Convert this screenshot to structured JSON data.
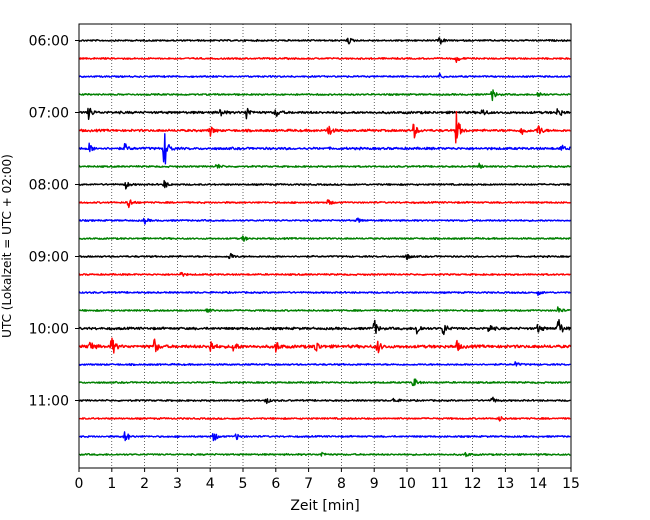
{
  "chart_data": {
    "type": "line",
    "title": "",
    "xlabel": "Zeit  [min]",
    "ylabel": "UTC (Lokalzeit = UTC + 02:00)",
    "xlim": [
      0,
      15
    ],
    "x_ticks": [
      "0",
      "1",
      "2",
      "3",
      "4",
      "5",
      "6",
      "7",
      "8",
      "9",
      "10",
      "11",
      "12",
      "13",
      "14",
      "15"
    ],
    "y_ticks": [
      "06:00",
      "07:00",
      "08:00",
      "09:00",
      "10:00",
      "11:00"
    ],
    "grid": "vertical dotted at each minute",
    "trace_interval_minutes": 15,
    "colors": [
      "#000000",
      "#ff0000",
      "#0000ff",
      "#008000"
    ],
    "traces": [
      {
        "start": "06:00",
        "color": "#000000",
        "amplitude": "low",
        "events": [
          {
            "x": 8.2,
            "a": 0.45
          },
          {
            "x": 11.0,
            "a": 0.5
          }
        ]
      },
      {
        "start": "06:15",
        "color": "#ff0000",
        "amplitude": "low",
        "events": [
          {
            "x": 11.5,
            "a": 0.45
          }
        ]
      },
      {
        "start": "06:30",
        "color": "#0000ff",
        "amplitude": "low",
        "events": [
          {
            "x": 11.0,
            "a": 0.35
          }
        ]
      },
      {
        "start": "06:45",
        "color": "#008000",
        "amplitude": "low",
        "events": [
          {
            "x": 12.6,
            "a": 0.7
          },
          {
            "x": 14.0,
            "a": 0.4
          }
        ]
      },
      {
        "start": "07:00",
        "color": "#000000",
        "amplitude": "medium",
        "events": [
          {
            "x": 0.3,
            "a": 0.8
          },
          {
            "x": 4.3,
            "a": 0.6
          },
          {
            "x": 5.1,
            "a": 0.9
          },
          {
            "x": 6.0,
            "a": 0.6
          },
          {
            "x": 12.3,
            "a": 0.5
          },
          {
            "x": 14.6,
            "a": 0.7
          }
        ]
      },
      {
        "start": "07:15",
        "color": "#ff0000",
        "amplitude": "medium",
        "events": [
          {
            "x": 4.0,
            "a": 0.6
          },
          {
            "x": 7.6,
            "a": 0.8
          },
          {
            "x": 10.2,
            "a": 1.0
          },
          {
            "x": 11.5,
            "a": 2.2
          },
          {
            "x": 13.5,
            "a": 0.7
          },
          {
            "x": 14.0,
            "a": 0.8
          }
        ]
      },
      {
        "start": "07:30",
        "color": "#0000ff",
        "amplitude": "medium",
        "events": [
          {
            "x": 0.3,
            "a": 0.6
          },
          {
            "x": 1.4,
            "a": 0.5
          },
          {
            "x": 2.6,
            "a": 2.5
          },
          {
            "x": 14.7,
            "a": 0.4
          }
        ]
      },
      {
        "start": "07:45",
        "color": "#008000",
        "amplitude": "low",
        "events": [
          {
            "x": 4.2,
            "a": 0.35
          },
          {
            "x": 12.2,
            "a": 0.3
          }
        ]
      },
      {
        "start": "08:00",
        "color": "#000000",
        "amplitude": "low",
        "events": [
          {
            "x": 1.4,
            "a": 0.6
          },
          {
            "x": 2.6,
            "a": 0.5
          }
        ]
      },
      {
        "start": "08:15",
        "color": "#ff0000",
        "amplitude": "low",
        "events": [
          {
            "x": 1.5,
            "a": 0.8
          },
          {
            "x": 7.6,
            "a": 0.4
          }
        ]
      },
      {
        "start": "08:30",
        "color": "#0000ff",
        "amplitude": "low",
        "events": [
          {
            "x": 2.0,
            "a": 0.35
          },
          {
            "x": 8.5,
            "a": 0.3
          }
        ]
      },
      {
        "start": "08:45",
        "color": "#008000",
        "amplitude": "low",
        "events": [
          {
            "x": 5.0,
            "a": 0.35
          }
        ]
      },
      {
        "start": "09:00",
        "color": "#000000",
        "amplitude": "low",
        "events": [
          {
            "x": 4.6,
            "a": 0.5
          },
          {
            "x": 10.0,
            "a": 0.35
          }
        ]
      },
      {
        "start": "09:15",
        "color": "#ff0000",
        "amplitude": "low",
        "events": [
          {
            "x": 3.1,
            "a": 0.3
          }
        ]
      },
      {
        "start": "09:30",
        "color": "#0000ff",
        "amplitude": "low",
        "events": [
          {
            "x": 14.0,
            "a": 0.3
          }
        ]
      },
      {
        "start": "09:45",
        "color": "#008000",
        "amplitude": "low",
        "events": [
          {
            "x": 3.9,
            "a": 0.35
          },
          {
            "x": 14.6,
            "a": 0.5
          }
        ]
      },
      {
        "start": "10:00",
        "color": "#000000",
        "amplitude": "medium",
        "events": [
          {
            "x": 9.0,
            "a": 1.0
          },
          {
            "x": 10.3,
            "a": 0.8
          },
          {
            "x": 11.1,
            "a": 0.9
          },
          {
            "x": 12.5,
            "a": 0.6
          },
          {
            "x": 14.0,
            "a": 0.6
          },
          {
            "x": 14.6,
            "a": 1.6
          }
        ]
      },
      {
        "start": "10:15",
        "color": "#ff0000",
        "amplitude": "high",
        "events": [
          {
            "x": 0.3,
            "a": 1.0
          },
          {
            "x": 1.0,
            "a": 1.2
          },
          {
            "x": 2.3,
            "a": 0.9
          },
          {
            "x": 4.0,
            "a": 0.8
          },
          {
            "x": 4.7,
            "a": 0.8
          },
          {
            "x": 6.0,
            "a": 0.7
          },
          {
            "x": 7.2,
            "a": 0.9
          },
          {
            "x": 9.1,
            "a": 0.8
          },
          {
            "x": 11.5,
            "a": 0.7
          }
        ]
      },
      {
        "start": "10:30",
        "color": "#0000ff",
        "amplitude": "low",
        "events": [
          {
            "x": 13.3,
            "a": 0.3
          }
        ]
      },
      {
        "start": "10:45",
        "color": "#008000",
        "amplitude": "low",
        "events": [
          {
            "x": 10.2,
            "a": 0.7
          }
        ]
      },
      {
        "start": "11:00",
        "color": "#000000",
        "amplitude": "low",
        "events": [
          {
            "x": 5.7,
            "a": 0.4
          },
          {
            "x": 9.6,
            "a": 0.4
          },
          {
            "x": 12.6,
            "a": 0.4
          }
        ]
      },
      {
        "start": "11:15",
        "color": "#ff0000",
        "amplitude": "low",
        "events": [
          {
            "x": 12.8,
            "a": 0.35
          }
        ]
      },
      {
        "start": "11:30",
        "color": "#0000ff",
        "amplitude": "low",
        "events": [
          {
            "x": 1.4,
            "a": 0.9
          },
          {
            "x": 4.1,
            "a": 0.7
          },
          {
            "x": 4.8,
            "a": 0.4
          }
        ]
      },
      {
        "start": "11:45",
        "color": "#008000",
        "amplitude": "low",
        "events": [
          {
            "x": 7.4,
            "a": 0.3
          },
          {
            "x": 11.8,
            "a": 0.3
          }
        ]
      }
    ]
  }
}
